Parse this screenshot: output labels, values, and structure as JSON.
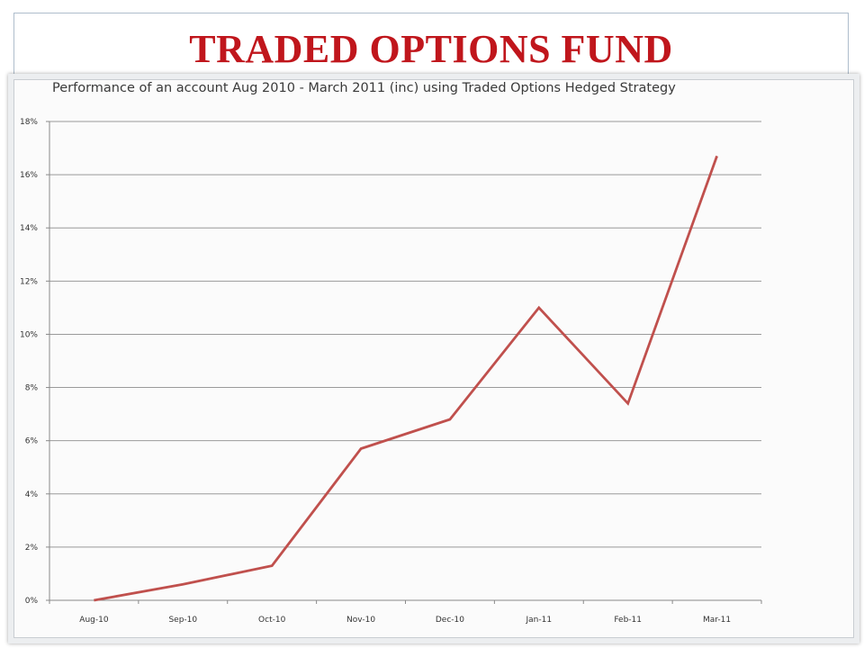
{
  "slide": {
    "title": "TRADED OPTIONS FUND"
  },
  "chart_data": {
    "type": "line",
    "title": "Performance of an account Aug 2010 - March 2011 (inc) using Traded Options Hedged Strategy",
    "xlabel": "",
    "ylabel": "",
    "categories": [
      "Aug-10",
      "Sep-10",
      "Oct-10",
      "Nov-10",
      "Dec-10",
      "Jan-11",
      "Feb-11",
      "Mar-11"
    ],
    "series": [
      {
        "values": [
          0.0,
          0.6,
          1.3,
          5.7,
          6.8,
          11.0,
          7.4,
          16.7
        ]
      }
    ],
    "ylim": [
      0,
      18
    ],
    "yticks": [
      0,
      2,
      4,
      6,
      8,
      10,
      12,
      14,
      16,
      18
    ],
    "ytick_labels": [
      "0%",
      "2%",
      "4%",
      "6%",
      "8%",
      "10%",
      "12%",
      "14%",
      "16%",
      "18%"
    ],
    "grid": true,
    "legend": "none",
    "line_color": "#c0504d"
  }
}
